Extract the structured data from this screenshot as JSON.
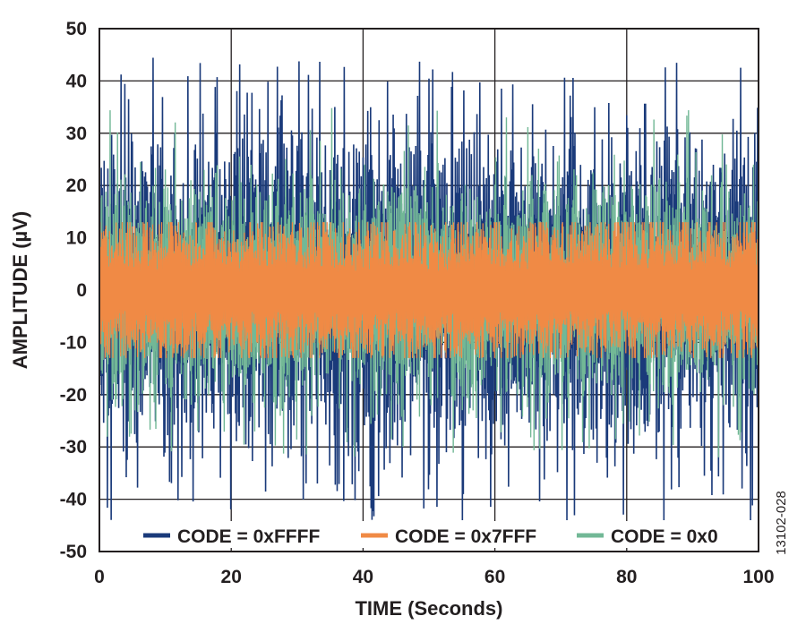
{
  "chart_data": {
    "type": "line",
    "title": "",
    "xlabel": "TIME (Seconds)",
    "ylabel": "AMPLITUDE (µV)",
    "xlim": [
      0,
      100
    ],
    "ylim": [
      -50,
      50
    ],
    "x_ticks": [
      "0",
      "20",
      "40",
      "60",
      "80",
      "100"
    ],
    "y_ticks": [
      "50",
      "40",
      "30",
      "20",
      "10",
      "0",
      "-10",
      "-20",
      "-30",
      "-40",
      "-50"
    ],
    "grid": true,
    "legend_position": "bottom",
    "figure_code": "13102-028",
    "series": [
      {
        "name": "CODE = 0xFFFF",
        "color": "#1a3a7a",
        "peak_max": 45,
        "peak_min": -44,
        "typical_band": [
          -30,
          30
        ]
      },
      {
        "name": "CODE = 0x7FFF",
        "color": "#f08a45",
        "peak_max": 13,
        "peak_min": -13,
        "typical_band": [
          -10,
          10
        ]
      },
      {
        "name": "CODE = 0x0",
        "color": "#72b896",
        "peak_max": 35,
        "peak_min": -32,
        "typical_band": [
          -18,
          18
        ]
      }
    ]
  }
}
